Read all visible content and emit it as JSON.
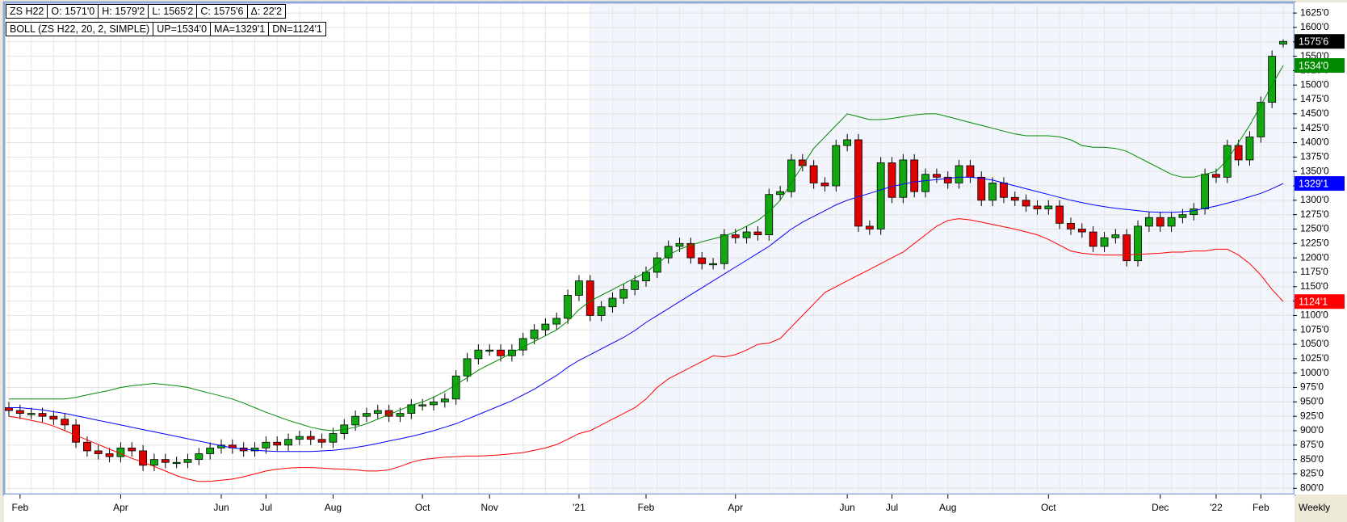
{
  "chart_data": {
    "type": "candlestick",
    "header": [
      [
        "ZS H22",
        "O: 1571'0",
        "H: 1579'2",
        "L: 1565'2",
        "C: 1575'6",
        "Δ: 22'2"
      ],
      [
        "BOLL (ZS H22, 20, 2, SIMPLE)",
        "UP=1534'0",
        "MA=1329'1",
        "DN=1124'1"
      ]
    ],
    "period": "Weekly",
    "categories": [
      null,
      "Feb",
      null,
      null,
      null,
      null,
      null,
      null,
      null,
      null,
      "Apr",
      null,
      null,
      null,
      null,
      null,
      null,
      null,
      null,
      "Jun",
      null,
      null,
      null,
      "Jul",
      null,
      null,
      null,
      null,
      null,
      "Aug",
      null,
      null,
      null,
      null,
      null,
      null,
      null,
      "Oct",
      null,
      null,
      null,
      null,
      null,
      "Nov",
      null,
      null,
      null,
      null,
      null,
      null,
      null,
      "'21",
      null,
      null,
      null,
      null,
      null,
      "Feb",
      null,
      null,
      null,
      null,
      null,
      null,
      null,
      "Apr",
      null,
      null,
      null,
      null,
      null,
      null,
      null,
      null,
      null,
      "Jun",
      null,
      null,
      null,
      "Jul",
      null,
      null,
      null,
      null,
      "Aug",
      null,
      null,
      null,
      null,
      null,
      null,
      null,
      null,
      "Oct",
      null,
      null,
      null,
      null,
      null,
      null,
      null,
      null,
      null,
      "Dec",
      null,
      null,
      null,
      null,
      "'22",
      null,
      null,
      null,
      "Feb",
      null,
      null
    ],
    "candles": {
      "up_color": "#12a812",
      "down_color": "#e00000",
      "open": [
        940,
        935,
        930,
        930,
        925,
        920,
        910,
        880,
        865,
        860,
        855,
        870,
        865,
        840,
        850,
        845,
        845,
        850,
        860,
        870,
        875,
        870,
        865,
        870,
        880,
        875,
        885,
        890,
        885,
        880,
        895,
        910,
        925,
        930,
        935,
        925,
        930,
        945,
        945,
        950,
        955,
        995,
        1025,
        1040,
        1040,
        1030,
        1040,
        1060,
        1075,
        1085,
        1095,
        1135,
        1160,
        1100,
        1115,
        1130,
        1145,
        1160,
        1175,
        1200,
        1220,
        1225,
        1200,
        1190,
        1190,
        1240,
        1235,
        1245,
        1240,
        1310,
        1315,
        1370,
        1360,
        1330,
        1325,
        1395,
        1405,
        1255,
        1250,
        1365,
        1305,
        1370,
        1315,
        1345,
        1340,
        1330,
        1360,
        1340,
        1300,
        1330,
        1305,
        1300,
        1290,
        1285,
        1290,
        1260,
        1250,
        1245,
        1220,
        1235,
        1240,
        1195,
        1255,
        1270,
        1255,
        1270,
        1275,
        1285,
        1345,
        1340,
        1395,
        1370,
        1410,
        1470,
        1571
      ],
      "high": [
        950,
        945,
        940,
        940,
        935,
        930,
        920,
        890,
        875,
        870,
        880,
        880,
        875,
        860,
        860,
        855,
        860,
        870,
        880,
        885,
        885,
        880,
        880,
        890,
        890,
        895,
        900,
        900,
        895,
        905,
        920,
        935,
        940,
        945,
        945,
        940,
        955,
        955,
        960,
        965,
        1005,
        1035,
        1050,
        1050,
        1050,
        1050,
        1070,
        1085,
        1095,
        1105,
        1145,
        1170,
        1170,
        1125,
        1140,
        1155,
        1170,
        1185,
        1210,
        1230,
        1235,
        1235,
        1210,
        1200,
        1250,
        1250,
        1255,
        1255,
        1320,
        1325,
        1380,
        1380,
        1370,
        1340,
        1405,
        1415,
        1415,
        1265,
        1375,
        1375,
        1380,
        1380,
        1355,
        1355,
        1350,
        1370,
        1370,
        1350,
        1340,
        1340,
        1315,
        1310,
        1300,
        1300,
        1300,
        1270,
        1260,
        1255,
        1245,
        1250,
        1250,
        1265,
        1280,
        1280,
        1280,
        1285,
        1295,
        1355,
        1355,
        1405,
        1405,
        1420,
        1480,
        1560,
        1579.25
      ],
      "low": [
        925,
        920,
        920,
        915,
        910,
        900,
        870,
        855,
        850,
        845,
        845,
        855,
        830,
        830,
        835,
        835,
        835,
        840,
        850,
        860,
        860,
        855,
        855,
        860,
        865,
        865,
        875,
        875,
        870,
        870,
        885,
        900,
        915,
        920,
        915,
        915,
        920,
        935,
        935,
        940,
        945,
        985,
        1015,
        1030,
        1020,
        1020,
        1030,
        1050,
        1065,
        1075,
        1085,
        1125,
        1090,
        1090,
        1105,
        1120,
        1135,
        1150,
        1165,
        1190,
        1210,
        1190,
        1180,
        1180,
        1180,
        1225,
        1225,
        1230,
        1230,
        1300,
        1305,
        1350,
        1320,
        1315,
        1315,
        1385,
        1245,
        1240,
        1240,
        1295,
        1295,
        1305,
        1305,
        1330,
        1320,
        1320,
        1330,
        1290,
        1290,
        1295,
        1290,
        1280,
        1275,
        1275,
        1250,
        1240,
        1235,
        1210,
        1210,
        1225,
        1185,
        1185,
        1245,
        1245,
        1245,
        1260,
        1265,
        1275,
        1330,
        1330,
        1360,
        1360,
        1400,
        1460,
        1565.25
      ],
      "close": [
        935,
        930,
        930,
        925,
        920,
        910,
        880,
        865,
        860,
        855,
        870,
        865,
        840,
        850,
        845,
        845,
        850,
        860,
        870,
        875,
        870,
        865,
        870,
        880,
        875,
        885,
        890,
        885,
        880,
        895,
        910,
        925,
        930,
        935,
        925,
        930,
        945,
        945,
        950,
        955,
        995,
        1025,
        1040,
        1040,
        1030,
        1040,
        1060,
        1075,
        1085,
        1095,
        1135,
        1160,
        1100,
        1115,
        1130,
        1145,
        1160,
        1175,
        1200,
        1220,
        1225,
        1200,
        1190,
        1190,
        1240,
        1235,
        1245,
        1240,
        1310,
        1315,
        1370,
        1360,
        1330,
        1325,
        1395,
        1405,
        1255,
        1250,
        1365,
        1305,
        1370,
        1315,
        1345,
        1340,
        1330,
        1360,
        1340,
        1300,
        1330,
        1305,
        1300,
        1290,
        1285,
        1290,
        1260,
        1250,
        1245,
        1220,
        1235,
        1240,
        1195,
        1255,
        1270,
        1255,
        1270,
        1275,
        1285,
        1345,
        1340,
        1395,
        1370,
        1410,
        1470,
        1550,
        1575.75
      ],
      "last_value_label": "1575'6"
    },
    "series": [
      {
        "color": "#008a00",
        "last_value_label": "1534'0",
        "values": [
          955,
          955,
          955,
          955,
          955,
          955,
          958,
          962,
          966,
          970,
          975,
          978,
          980,
          982,
          980,
          978,
          975,
          970,
          965,
          960,
          955,
          948,
          940,
          932,
          925,
          918,
          912,
          906,
          902,
          900,
          902,
          906,
          912,
          920,
          928,
          936,
          944,
          950,
          958,
          968,
          980,
          992,
          1005,
          1015,
          1025,
          1035,
          1045,
          1055,
          1065,
          1075,
          1090,
          1110,
          1125,
          1135,
          1145,
          1155,
          1165,
          1175,
          1190,
          1205,
          1215,
          1222,
          1228,
          1233,
          1238,
          1245,
          1255,
          1265,
          1280,
          1300,
          1330,
          1360,
          1390,
          1410,
          1430,
          1450,
          1445,
          1440,
          1440,
          1442,
          1445,
          1448,
          1450,
          1450,
          1445,
          1440,
          1435,
          1430,
          1425,
          1420,
          1415,
          1412,
          1412,
          1412,
          1410,
          1405,
          1395,
          1392,
          1392,
          1390,
          1385,
          1375,
          1365,
          1355,
          1345,
          1340,
          1340,
          1345,
          1350,
          1370,
          1400,
          1430,
          1465,
          1500,
          1534
        ]
      },
      {
        "color": "#0000ff",
        "last_value_label": "1329'1",
        "values": [
          940,
          940,
          938,
          936,
          933,
          930,
          926,
          922,
          918,
          914,
          910,
          906,
          902,
          898,
          894,
          890,
          886,
          882,
          878,
          874,
          870,
          868,
          866,
          865,
          864,
          864,
          864,
          864,
          865,
          866,
          868,
          871,
          874,
          878,
          882,
          886,
          890,
          895,
          900,
          906,
          912,
          920,
          928,
          936,
          944,
          952,
          962,
          972,
          984,
          996,
          1010,
          1022,
          1032,
          1042,
          1052,
          1062,
          1074,
          1088,
          1100,
          1112,
          1124,
          1136,
          1148,
          1160,
          1172,
          1184,
          1196,
          1208,
          1220,
          1235,
          1250,
          1262,
          1272,
          1282,
          1292,
          1300,
          1306,
          1312,
          1318,
          1324,
          1328,
          1332,
          1334,
          1336,
          1338,
          1340,
          1340,
          1338,
          1335,
          1330,
          1325,
          1320,
          1315,
          1310,
          1305,
          1300,
          1296,
          1292,
          1289,
          1286,
          1284,
          1282,
          1280,
          1279,
          1279,
          1280,
          1282,
          1286,
          1290,
          1295,
          1300,
          1306,
          1312,
          1320,
          1329.125
        ]
      },
      {
        "color": "#ff0000",
        "last_value_label": "1124'1",
        "values": [
          925,
          922,
          918,
          914,
          908,
          900,
          892,
          884,
          876,
          868,
          860,
          852,
          845,
          838,
          830,
          822,
          816,
          812,
          812,
          814,
          816,
          820,
          825,
          830,
          833,
          835,
          836,
          836,
          835,
          834,
          833,
          832,
          830,
          830,
          832,
          838,
          845,
          850,
          852,
          854,
          855,
          856,
          856,
          857,
          858,
          860,
          862,
          866,
          870,
          876,
          885,
          895,
          900,
          910,
          920,
          930,
          940,
          955,
          975,
          990,
          1000,
          1010,
          1020,
          1030,
          1028,
          1032,
          1040,
          1050,
          1052,
          1060,
          1080,
          1100,
          1120,
          1140,
          1150,
          1160,
          1170,
          1180,
          1190,
          1200,
          1210,
          1225,
          1240,
          1255,
          1265,
          1268,
          1266,
          1262,
          1258,
          1254,
          1250,
          1245,
          1240,
          1232,
          1222,
          1212,
          1208,
          1206,
          1205,
          1205,
          1205,
          1206,
          1207,
          1208,
          1210,
          1210,
          1212,
          1212,
          1215,
          1215,
          1205,
          1190,
          1170,
          1145,
          1124.125
        ]
      }
    ],
    "ylim": [
      792,
      1642
    ],
    "yticks": [
      {
        "value": 800,
        "label": "800'0"
      },
      {
        "value": 825,
        "label": "825'0"
      },
      {
        "value": 850,
        "label": "850'0"
      },
      {
        "value": 875,
        "label": "875'0"
      },
      {
        "value": 900,
        "label": "900'0"
      },
      {
        "value": 925,
        "label": "925'0"
      },
      {
        "value": 950,
        "label": "950'0"
      },
      {
        "value": 975,
        "label": "975'0"
      },
      {
        "value": 1000,
        "label": "1000'0"
      },
      {
        "value": 1025,
        "label": "1025'0"
      },
      {
        "value": 1050,
        "label": "1050'0"
      },
      {
        "value": 1075,
        "label": "1075'0"
      },
      {
        "value": 1100,
        "label": "1100'0"
      },
      {
        "value": 1125,
        "label": "1125'0"
      },
      {
        "value": 1150,
        "label": "1150'0"
      },
      {
        "value": 1175,
        "label": "1175'0"
      },
      {
        "value": 1200,
        "label": "1200'0"
      },
      {
        "value": 1225,
        "label": "1225'0"
      },
      {
        "value": 1250,
        "label": "1250'0"
      },
      {
        "value": 1275,
        "label": "1275'0"
      },
      {
        "value": 1300,
        "label": "1300'0"
      },
      {
        "value": 1325,
        "label": "1325'0"
      },
      {
        "value": 1350,
        "label": "1350'0"
      },
      {
        "value": 1375,
        "label": "1375'0"
      },
      {
        "value": 1400,
        "label": "1400'0"
      },
      {
        "value": 1425,
        "label": "1425'0"
      },
      {
        "value": 1450,
        "label": "1450'0"
      },
      {
        "value": 1475,
        "label": "1475'0"
      },
      {
        "value": 1500,
        "label": "1500'0"
      },
      {
        "value": 1525,
        "label": "1525'0"
      },
      {
        "value": 1550,
        "label": "1550'0"
      },
      {
        "value": 1575,
        "label": "1575'0"
      },
      {
        "value": 1600,
        "label": "1600'0"
      },
      {
        "value": 1625,
        "label": "1625'0"
      }
    ],
    "grid": true
  }
}
